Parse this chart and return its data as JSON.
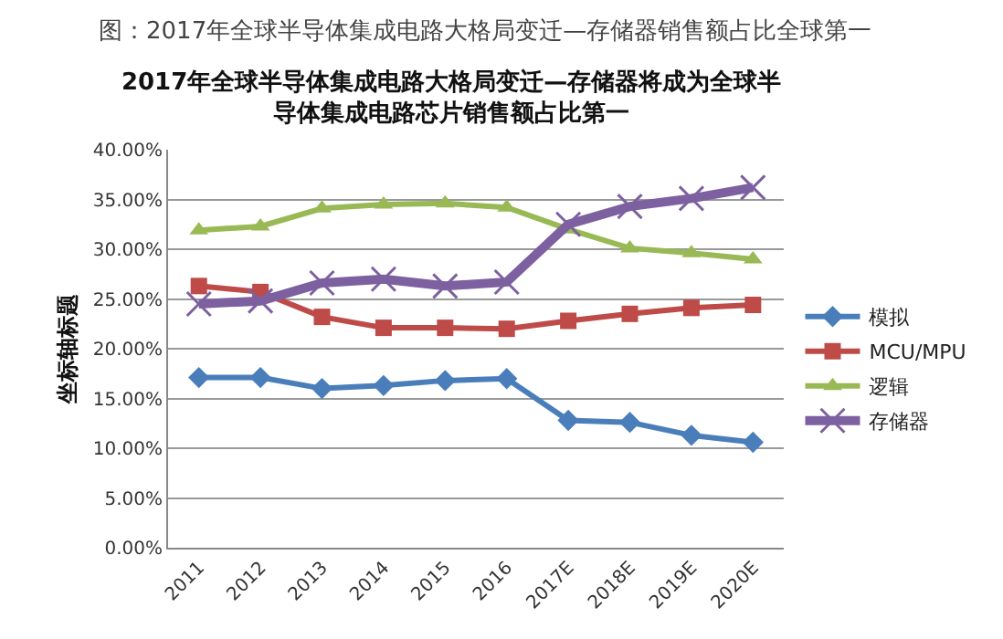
{
  "chart_data": {
    "type": "line",
    "title": "2017年全球半导体集成电路大格局变迁—存储器将成为全球半导体集成电路芯片销售额占比第一",
    "annotations": [
      "图：2017年全球半导体集成电路大格局变迁—存储器销售额占比全球第一"
    ],
    "ylabel": "坐标轴标题",
    "categories": [
      "2011",
      "2012",
      "2013",
      "2014",
      "2015",
      "2016",
      "2017E",
      "2018E",
      "2019E",
      "2020E"
    ],
    "series": [
      {
        "name": "模拟",
        "color": "#4a7ebb",
        "marker": "diamond",
        "values": [
          17.1,
          17.1,
          16.0,
          16.3,
          16.8,
          17.0,
          12.8,
          12.6,
          11.3,
          10.6
        ]
      },
      {
        "name": "MCU/MPU",
        "color": "#be4b48",
        "marker": "square",
        "values": [
          26.3,
          25.7,
          23.2,
          22.1,
          22.1,
          22.0,
          22.8,
          23.5,
          24.1,
          24.4
        ]
      },
      {
        "name": "逻辑",
        "color": "#98b954",
        "marker": "triangle",
        "values": [
          31.9,
          32.3,
          34.1,
          34.5,
          34.6,
          34.2,
          32.0,
          30.1,
          29.6,
          29.0
        ]
      },
      {
        "name": "存储器",
        "color": "#7d60a0",
        "marker": "cross",
        "values": [
          24.5,
          24.8,
          26.6,
          27.0,
          26.3,
          26.7,
          32.5,
          34.3,
          35.1,
          36.2
        ]
      }
    ],
    "ylim": [
      0,
      40
    ],
    "yticks": [
      {
        "value": 0,
        "label": "0.00%"
      },
      {
        "value": 5,
        "label": "5.00%"
      },
      {
        "value": 10,
        "label": "10.00%"
      },
      {
        "value": 15,
        "label": "15.00%"
      },
      {
        "value": 20,
        "label": "20.00%"
      },
      {
        "value": 25,
        "label": "25.00%"
      },
      {
        "value": 30,
        "label": "30.00%"
      },
      {
        "value": 35,
        "label": "35.00%"
      },
      {
        "value": 40,
        "label": "40.00%"
      }
    ],
    "grid": "y",
    "legend": "right",
    "line_style": "solid"
  }
}
